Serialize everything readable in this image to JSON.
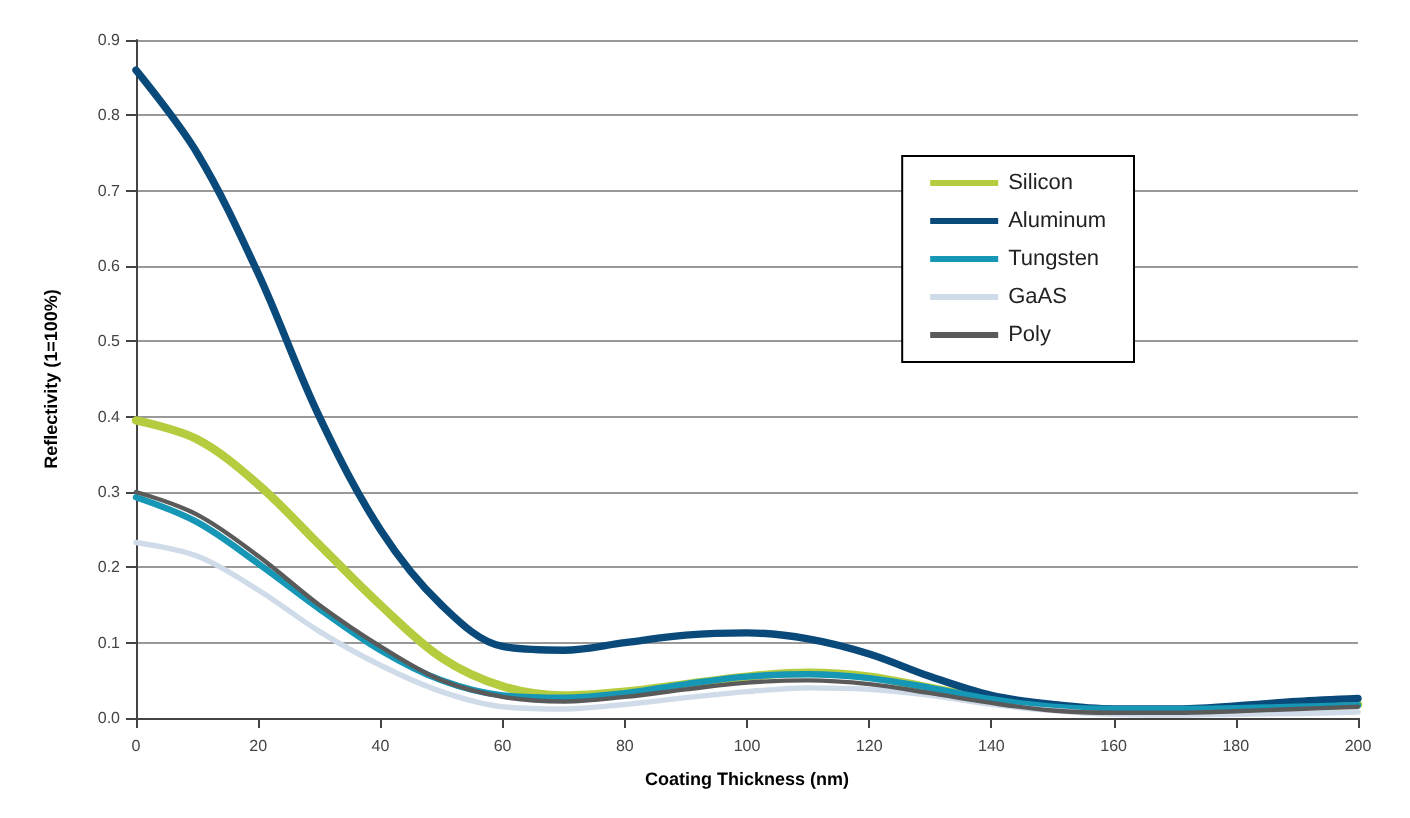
{
  "chart_data": {
    "type": "line",
    "xlabel": "Coating Thickness (nm)",
    "ylabel": "Reflectivity (1=100%)",
    "x": [
      0,
      10,
      20,
      30,
      40,
      50,
      60,
      70,
      80,
      90,
      100,
      110,
      120,
      130,
      140,
      150,
      160,
      170,
      180,
      190,
      200
    ],
    "series": [
      {
        "name": "Silicon",
        "color": "#b5cc3e",
        "values": [
          0.395,
          0.37,
          0.31,
          0.23,
          0.15,
          0.08,
          0.042,
          0.03,
          0.035,
          0.045,
          0.055,
          0.06,
          0.055,
          0.04,
          0.025,
          0.015,
          0.01,
          0.01,
          0.012,
          0.015,
          0.018
        ]
      },
      {
        "name": "Aluminum",
        "color": "#0a4a7a",
        "values": [
          0.86,
          0.75,
          0.59,
          0.4,
          0.25,
          0.15,
          0.095,
          0.09,
          0.1,
          0.11,
          0.113,
          0.105,
          0.085,
          0.055,
          0.03,
          0.018,
          0.012,
          0.012,
          0.016,
          0.022,
          0.026
        ]
      },
      {
        "name": "Tungsten",
        "color": "#1597b5",
        "values": [
          0.293,
          0.26,
          0.205,
          0.145,
          0.09,
          0.05,
          0.03,
          0.027,
          0.033,
          0.045,
          0.055,
          0.058,
          0.053,
          0.04,
          0.025,
          0.015,
          0.012,
          0.012,
          0.013,
          0.015,
          0.017
        ]
      },
      {
        "name": "GaAS",
        "color": "#cfdbe8",
        "values": [
          0.233,
          0.215,
          0.17,
          0.115,
          0.07,
          0.035,
          0.015,
          0.012,
          0.018,
          0.027,
          0.035,
          0.04,
          0.038,
          0.03,
          0.018,
          0.01,
          0.005,
          0.004,
          0.005,
          0.006,
          0.008
        ]
      },
      {
        "name": "Poly",
        "color": "#5a5a5a",
        "values": [
          0.3,
          0.27,
          0.215,
          0.15,
          0.095,
          0.05,
          0.028,
          0.022,
          0.028,
          0.038,
          0.047,
          0.05,
          0.045,
          0.033,
          0.02,
          0.01,
          0.007,
          0.007,
          0.009,
          0.012,
          0.015
        ]
      }
    ],
    "xlim": [
      0,
      200
    ],
    "xticks": [
      0,
      20,
      40,
      60,
      80,
      100,
      120,
      140,
      160,
      180,
      200
    ],
    "ylim": [
      0,
      0.9
    ],
    "yticks": [
      {
        "value": 0,
        "label": "0.0"
      },
      0.1,
      0.2,
      0.3,
      0.4,
      0.5,
      0.6,
      0.7,
      0.8,
      0.9
    ],
    "grid": "y",
    "legend": "top right",
    "marker": "none",
    "line_style": "solid"
  }
}
